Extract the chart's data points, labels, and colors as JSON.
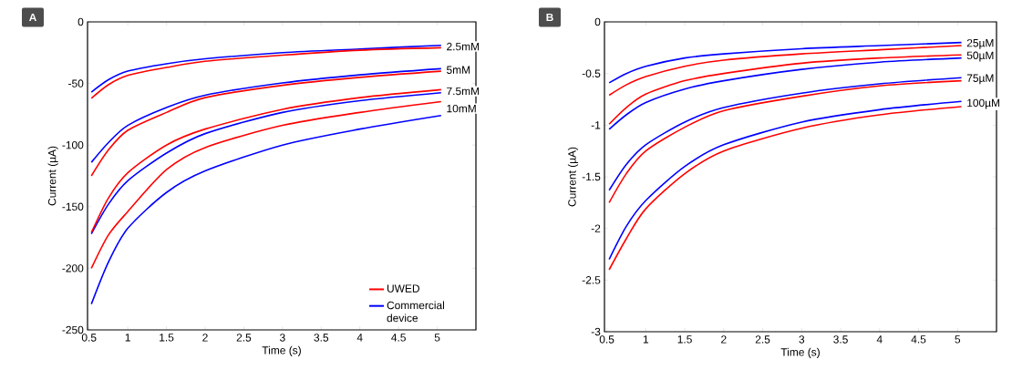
{
  "chart_data": [
    {
      "type": "line",
      "title": "A",
      "xlabel": "Time (s)",
      "ylabel": "Current (µA)",
      "xlim": [
        0.48,
        5.5
      ],
      "ylim": [
        -250,
        0
      ],
      "xticks": [
        0.5,
        1,
        1.5,
        2,
        2.5,
        3,
        3.5,
        4,
        4.5,
        5
      ],
      "yticks": [
        -250,
        -200,
        -150,
        -100,
        -50,
        0
      ],
      "legend": "bottom right",
      "x": [
        0.53,
        0.75,
        1,
        1.5,
        2,
        3,
        4,
        5.05
      ],
      "series": [
        {
          "color": "#0000ff",
          "values": [
            -57,
            -47,
            -40,
            -34,
            -30,
            -25,
            -22,
            -19
          ]
        },
        {
          "color": "#ff0000",
          "values": [
            -62,
            -51,
            -43.5,
            -37,
            -32,
            -27,
            -23,
            -21
          ]
        },
        {
          "color": "#0000ff",
          "values": [
            -114,
            -98,
            -84,
            -69.5,
            -59.5,
            -49.6,
            -43,
            -38
          ]
        },
        {
          "color": "#ff0000",
          "values": [
            -125,
            -104,
            -88,
            -73.5,
            -61.5,
            -51.5,
            -45,
            -40
          ]
        },
        {
          "color": "#0000ff",
          "values": [
            -172,
            -148,
            -129,
            -106.5,
            -90.7,
            -73.5,
            -64,
            -57.5
          ]
        },
        {
          "name": "UWED",
          "color": "#ff0000",
          "values": [
            -171,
            -143,
            -122.5,
            -100,
            -87,
            -71,
            -61.5,
            -55
          ]
        },
        {
          "name": "Commercial device",
          "color": "#0000ff",
          "values": [
            -229,
            -195,
            -167.6,
            -138.5,
            -121,
            -100,
            -87,
            -76
          ]
        },
        {
          "color": "#ff0000",
          "values": [
            -200,
            -173,
            -154,
            -120,
            -102,
            -84,
            -73.5,
            -64.7
          ]
        }
      ],
      "annotations": [
        "2.5mM",
        "5mM",
        "7.5mM",
        "10mM"
      ]
    },
    {
      "type": "line",
      "title": "B",
      "xlabel": "Time (s)",
      "ylabel": "Current (µA)",
      "xlim": [
        0.47,
        5.5
      ],
      "ylim": [
        -3,
        0
      ],
      "xticks": [
        0.5,
        1,
        1.5,
        2,
        2.5,
        3,
        3.5,
        4,
        4.5,
        5
      ],
      "yticks": [
        -3,
        -2.5,
        -2,
        -1.5,
        -1,
        -0.5,
        0
      ],
      "x": [
        0.53,
        0.75,
        1,
        1.5,
        2,
        3,
        4,
        5.05
      ],
      "series": [
        {
          "color": "#0000ff",
          "values": [
            -0.59,
            -0.5,
            -0.43,
            -0.35,
            -0.31,
            -0.26,
            -0.23,
            -0.2
          ]
        },
        {
          "color": "#ff0000",
          "values": [
            -0.71,
            -0.61,
            -0.53,
            -0.43,
            -0.37,
            -0.31,
            -0.27,
            -0.23
          ]
        },
        {
          "color": "#ff0000",
          "values": [
            -0.99,
            -0.83,
            -0.7,
            -0.57,
            -0.5,
            -0.4,
            -0.35,
            -0.32
          ]
        },
        {
          "color": "#0000ff",
          "values": [
            -1.04,
            -0.9,
            -0.78,
            -0.65,
            -0.57,
            -0.46,
            -0.39,
            -0.35
          ]
        },
        {
          "color": "#0000ff",
          "values": [
            -1.63,
            -1.38,
            -1.19,
            -0.97,
            -0.83,
            -0.69,
            -0.6,
            -0.54
          ]
        },
        {
          "color": "#ff0000",
          "values": [
            -1.75,
            -1.47,
            -1.25,
            -1.02,
            -0.86,
            -0.72,
            -0.62,
            -0.57
          ]
        },
        {
          "color": "#0000ff",
          "values": [
            -2.3,
            -1.98,
            -1.73,
            -1.4,
            -1.19,
            -0.97,
            -0.85,
            -0.77
          ]
        },
        {
          "color": "#ff0000",
          "values": [
            -2.4,
            -2.1,
            -1.81,
            -1.47,
            -1.25,
            -1.03,
            -0.9,
            -0.82
          ]
        }
      ],
      "annotations": [
        "25µM",
        "50µM",
        "75µM",
        "100µM"
      ]
    }
  ]
}
